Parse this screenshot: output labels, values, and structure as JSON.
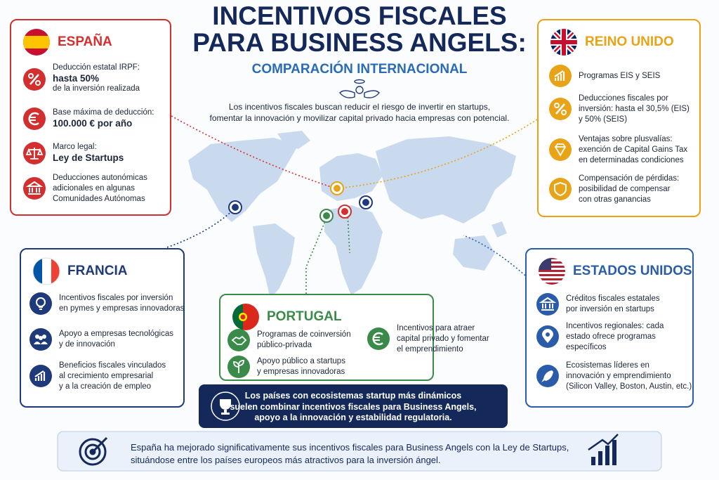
{
  "header": {
    "title_lines": [
      "INCENTIVOS FISCALES",
      "PARA BUSINESS ANGELS:"
    ],
    "subtitle": "COMPARACIÓN INTERNACIONAL",
    "intro_lines": [
      "Los incentivos fiscales buscan reducir el riesgo de invertir en startups,",
      "fomentar la innovación y movilizar capital privado hacia empresas con potencial."
    ]
  },
  "panels": {
    "spain": {
      "title": "ESPAÑA",
      "items": [
        [
          "Deducción estatal IRPF:",
          "hasta 50%",
          "de la inversión realizada"
        ],
        [
          "Base máxima de deducción:",
          "100.000 € por año"
        ],
        [
          "Marco legal:",
          "Ley de Startups"
        ],
        [
          "Deducciones autonómicas",
          "adicionales en algunas",
          "Comunidades Autónomas"
        ]
      ]
    },
    "uk": {
      "title": "REINO UNIDO",
      "items": [
        [
          "Programas EIS y SEIS"
        ],
        [
          "Deducciones fiscales por",
          "inversión: hasta el 30,5% (EIS)",
          "y 50% (SEIS)"
        ],
        [
          "Ventajas sobre plusvalías:",
          "exención de Capital Gains Tax",
          "en determinadas condiciones"
        ],
        [
          "Compensación de pérdidas:",
          "posibilidad de compensar",
          "con otras ganancias"
        ]
      ]
    },
    "france": {
      "title": "FRANCIA",
      "items": [
        [
          "Incentivos fiscales por inversión",
          "en pymes y empresas innovadoras"
        ],
        [
          "Apoyo a empresas tecnológicas",
          "y de innovación"
        ],
        [
          "Beneficios fiscales vinculados",
          "al crecimiento empresarial",
          "y a la creación de empleo"
        ]
      ]
    },
    "portugal": {
      "title": "PORTUGAL",
      "items": [
        [
          "Programas de coinversión",
          "público-privada"
        ],
        [
          "Apoyo público a startups",
          "y empresas innovadoras"
        ],
        [
          "Incentivos para atraer",
          "capital privado y fomentar",
          "el emprendimiento"
        ]
      ]
    },
    "usa": {
      "title": "ESTADOS UNIDOS",
      "items": [
        [
          "Créditos fiscales estatales",
          "por inversión en startups"
        ],
        [
          "Incentivos regionales: cada",
          "estado ofrece programas",
          "específicos"
        ],
        [
          "Ecosistemas líderes en",
          "innovación y emprendimiento",
          "(Silicon Valley, Boston, Austin, etc.)"
        ]
      ]
    }
  },
  "callout": {
    "lines": [
      "Los países con ecosistemas startup más dinámicos",
      "suelen combinar incentivos fiscales para Business Angels,",
      "apoyo a la innovación y estabilidad regulatoria."
    ]
  },
  "footer": {
    "lines": [
      "España  ha mejorado significativamente sus incentivos fiscales para Business Angels con la Ley de Startups,",
      "situándose entre los países europeos más atractivos para la inversión ángel."
    ]
  }
}
